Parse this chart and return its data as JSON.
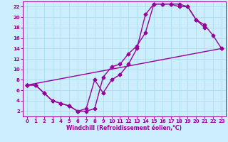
{
  "bg_color": "#cceeff",
  "grid_color": "#aaddee",
  "line_color": "#990099",
  "xlabel": "Windchill (Refroidissement éolien,°C)",
  "xlim": [
    -0.5,
    23.5
  ],
  "ylim": [
    1,
    23
  ],
  "xticks": [
    0,
    1,
    2,
    3,
    4,
    5,
    6,
    7,
    8,
    9,
    10,
    11,
    12,
    13,
    14,
    15,
    16,
    17,
    18,
    19,
    20,
    21,
    22,
    23
  ],
  "yticks": [
    2,
    4,
    6,
    8,
    10,
    12,
    14,
    16,
    18,
    20,
    22
  ],
  "line1_x": [
    0,
    1,
    2,
    3,
    4,
    5,
    6,
    7,
    8,
    9,
    10,
    11,
    12,
    13,
    14,
    15,
    16,
    17,
    18,
    19,
    20,
    21,
    22,
    23
  ],
  "line1_y": [
    7,
    7,
    5.5,
    4,
    3.5,
    3.0,
    2.0,
    2.5,
    8.0,
    5.5,
    8.0,
    9.0,
    11.0,
    14.0,
    20.5,
    22.5,
    22.5,
    22.5,
    22.0,
    22.0,
    19.5,
    18.5,
    16.5,
    14.0
  ],
  "line2_x": [
    0,
    1,
    2,
    3,
    4,
    5,
    6,
    7,
    8,
    9,
    10,
    11,
    12,
    13,
    14,
    15,
    16,
    17,
    18,
    19,
    20,
    21
  ],
  "line2_y": [
    7,
    7,
    5.5,
    4.0,
    3.5,
    3.0,
    2.0,
    2.0,
    2.5,
    8.5,
    10.5,
    11.0,
    13.0,
    14.5,
    17.0,
    22.5,
    22.5,
    22.5,
    22.5,
    22.0,
    19.5,
    18.0
  ],
  "line3_x": [
    0,
    23
  ],
  "line3_y": [
    7,
    14
  ],
  "markersize": 2.5,
  "linewidth": 1.0,
  "tick_fontsize": 5.0,
  "xlabel_fontsize": 5.5
}
